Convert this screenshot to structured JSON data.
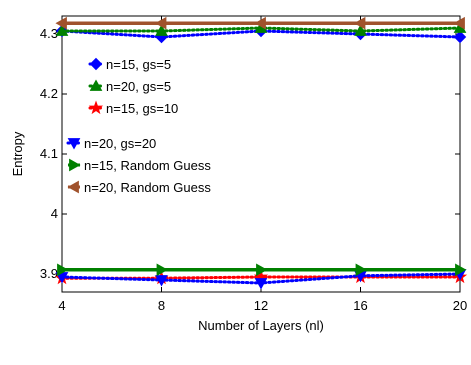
{
  "chart_data": {
    "type": "line",
    "xlabel": "Number of Layers (nl)",
    "ylabel": "Entropy",
    "xlim": [
      4,
      20
    ],
    "ylim": [
      3.87,
      4.33
    ],
    "x": [
      4,
      8,
      12,
      16,
      20
    ],
    "x_ticks": [
      "4",
      "8",
      "12",
      "16",
      "20"
    ],
    "y_ticks": [
      {
        "value": 3.9,
        "label": "3.9"
      },
      {
        "value": 4.0,
        "label": "4"
      },
      {
        "value": 4.1,
        "label": "4.1"
      },
      {
        "value": 4.2,
        "label": "4.2"
      },
      {
        "value": 4.3,
        "label": "4.3"
      }
    ],
    "grid": false,
    "legend_position": "inside, upper-left",
    "series": [
      {
        "name": "n=15, gs=5",
        "color": "#0000ff",
        "marker": "diamond",
        "dash": "dotted",
        "values": [
          4.305,
          4.295,
          4.305,
          4.3,
          4.295
        ]
      },
      {
        "name": "n=20, gs=5",
        "color": "#008000",
        "marker": "triangle-up",
        "dash": "dotted",
        "values": [
          4.305,
          4.305,
          4.31,
          4.305,
          4.31
        ]
      },
      {
        "name": "n=15, gs=10",
        "color": "#ff0000",
        "marker": "star",
        "dash": "dotted",
        "values": [
          3.893,
          3.893,
          3.895,
          3.895,
          3.895
        ]
      },
      {
        "name": "n=20, gs=20",
        "color": "#0000ff",
        "marker": "triangle-down",
        "dash": "dotted",
        "values": [
          3.895,
          3.89,
          3.885,
          3.897,
          3.9
        ]
      },
      {
        "name": "n=15, Random Guess",
        "color": "#008000",
        "marker": "triangle-right",
        "dash": "solid",
        "values": [
          3.907,
          3.907,
          3.907,
          3.907,
          3.907
        ]
      },
      {
        "name": "n=20, Random Guess",
        "color": "#a0522d",
        "marker": "triangle-left",
        "dash": "solid",
        "values": [
          4.318,
          4.318,
          4.318,
          4.318,
          4.318
        ]
      }
    ]
  }
}
